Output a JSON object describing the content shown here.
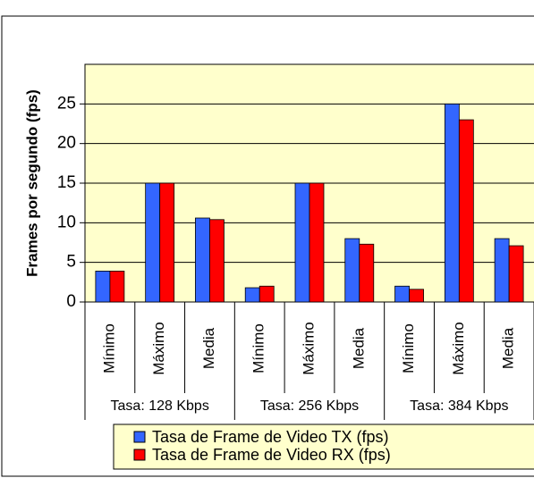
{
  "chart_data": {
    "type": "bar",
    "ylabel": "Frames por segundo (fps)",
    "categories": [
      "Mínimo",
      "Máximo",
      "Media",
      "Mínimo",
      "Máximo",
      "Media",
      "Mínimo",
      "Máximo",
      "Media"
    ],
    "groups": [
      "Tasa: 128 Kbps",
      "Tasa: 256 Kbps",
      "Tasa: 384 Kbps"
    ],
    "series": [
      {
        "name": "Tasa de Frame de Video TX (fps)",
        "color": "#3366ff",
        "values": [
          3.9,
          15,
          10.6,
          1.8,
          15,
          8,
          2,
          25,
          8
        ]
      },
      {
        "name": "Tasa de Frame de Video RX (fps)",
        "color": "#ff0000",
        "values": [
          3.9,
          15,
          10.4,
          2.0,
          15,
          7.3,
          1.6,
          23,
          7.1
        ]
      }
    ],
    "ylim": [
      0,
      30
    ],
    "yticks": [
      0,
      5,
      10,
      15,
      20,
      25
    ],
    "grid": true
  }
}
